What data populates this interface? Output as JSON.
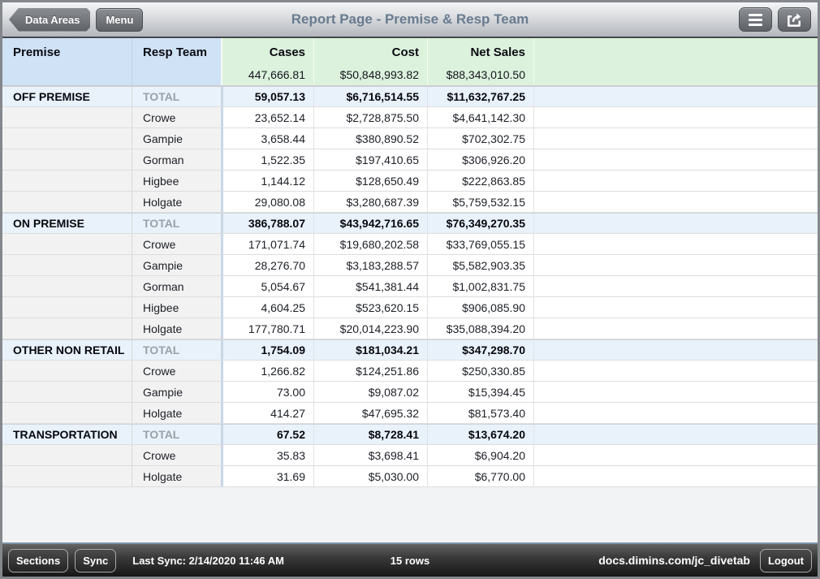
{
  "nav": {
    "back_button": "Data Areas",
    "menu_button": "Menu",
    "title": "Report Page - Premise & Resp Team",
    "icons": {
      "left": "back-chevron",
      "right1": "list-icon",
      "right2": "share-icon"
    }
  },
  "table": {
    "columns": [
      "Premise",
      "Resp Team",
      "Cases",
      "Cost",
      "Net Sales"
    ],
    "grand_total": {
      "cases": "447,666.81",
      "cost": "$50,848,993.82",
      "net_sales": "$88,343,010.50"
    },
    "rows": [
      {
        "premise": "OFF PREMISE",
        "team": "TOTAL",
        "cases": "59,057.13",
        "cost": "$6,716,514.55",
        "net_sales": "$11,632,767.25",
        "type": "total"
      },
      {
        "premise": "",
        "team": "Crowe",
        "cases": "23,652.14",
        "cost": "$2,728,875.50",
        "net_sales": "$4,641,142.30",
        "type": "detail"
      },
      {
        "premise": "",
        "team": "Gampie",
        "cases": "3,658.44",
        "cost": "$380,890.52",
        "net_sales": "$702,302.75",
        "type": "detail"
      },
      {
        "premise": "",
        "team": "Gorman",
        "cases": "1,522.35",
        "cost": "$197,410.65",
        "net_sales": "$306,926.20",
        "type": "detail"
      },
      {
        "premise": "",
        "team": "Higbee",
        "cases": "1,144.12",
        "cost": "$128,650.49",
        "net_sales": "$222,863.85",
        "type": "detail"
      },
      {
        "premise": "",
        "team": "Holgate",
        "cases": "29,080.08",
        "cost": "$3,280,687.39",
        "net_sales": "$5,759,532.15",
        "type": "detail"
      },
      {
        "premise": "ON PREMISE",
        "team": "TOTAL",
        "cases": "386,788.07",
        "cost": "$43,942,716.65",
        "net_sales": "$76,349,270.35",
        "type": "total"
      },
      {
        "premise": "",
        "team": "Crowe",
        "cases": "171,071.74",
        "cost": "$19,680,202.58",
        "net_sales": "$33,769,055.15",
        "type": "detail"
      },
      {
        "premise": "",
        "team": "Gampie",
        "cases": "28,276.70",
        "cost": "$3,183,288.57",
        "net_sales": "$5,582,903.35",
        "type": "detail"
      },
      {
        "premise": "",
        "team": "Gorman",
        "cases": "5,054.67",
        "cost": "$541,381.44",
        "net_sales": "$1,002,831.75",
        "type": "detail"
      },
      {
        "premise": "",
        "team": "Higbee",
        "cases": "4,604.25",
        "cost": "$523,620.15",
        "net_sales": "$906,085.90",
        "type": "detail"
      },
      {
        "premise": "",
        "team": "Holgate",
        "cases": "177,780.71",
        "cost": "$20,014,223.90",
        "net_sales": "$35,088,394.20",
        "type": "detail"
      },
      {
        "premise": "OTHER NON RETAIL",
        "team": "TOTAL",
        "cases": "1,754.09",
        "cost": "$181,034.21",
        "net_sales": "$347,298.70",
        "type": "total"
      },
      {
        "premise": "",
        "team": "Crowe",
        "cases": "1,266.82",
        "cost": "$124,251.86",
        "net_sales": "$250,330.85",
        "type": "detail"
      },
      {
        "premise": "",
        "team": "Gampie",
        "cases": "73.00",
        "cost": "$9,087.02",
        "net_sales": "$15,394.45",
        "type": "detail"
      },
      {
        "premise": "",
        "team": "Holgate",
        "cases": "414.27",
        "cost": "$47,695.32",
        "net_sales": "$81,573.40",
        "type": "detail"
      },
      {
        "premise": "TRANSPORTATION",
        "team": "TOTAL",
        "cases": "67.52",
        "cost": "$8,728.41",
        "net_sales": "$13,674.20",
        "type": "total"
      },
      {
        "premise": "",
        "team": "Crowe",
        "cases": "35.83",
        "cost": "$3,698.41",
        "net_sales": "$6,904.20",
        "type": "detail"
      },
      {
        "premise": "",
        "team": "Holgate",
        "cases": "31.69",
        "cost": "$5,030.00",
        "net_sales": "$6,770.00",
        "type": "detail"
      }
    ]
  },
  "footer": {
    "sections_button": "Sections",
    "sync_button": "Sync",
    "last_sync": "Last Sync: 2/14/2020 11:46 AM",
    "row_count": "15 rows",
    "server": "docs.dimins.com/jc_divetab",
    "logout_button": "Logout"
  },
  "colors": {
    "header_blue": "#cfe2f6",
    "header_green": "#dcf2dc",
    "total_row_blue": "#e9f2fa",
    "label_cell_gray": "#f2f2f2",
    "title_text": "#697b90",
    "footer_accent_line": "#7d93a8"
  }
}
